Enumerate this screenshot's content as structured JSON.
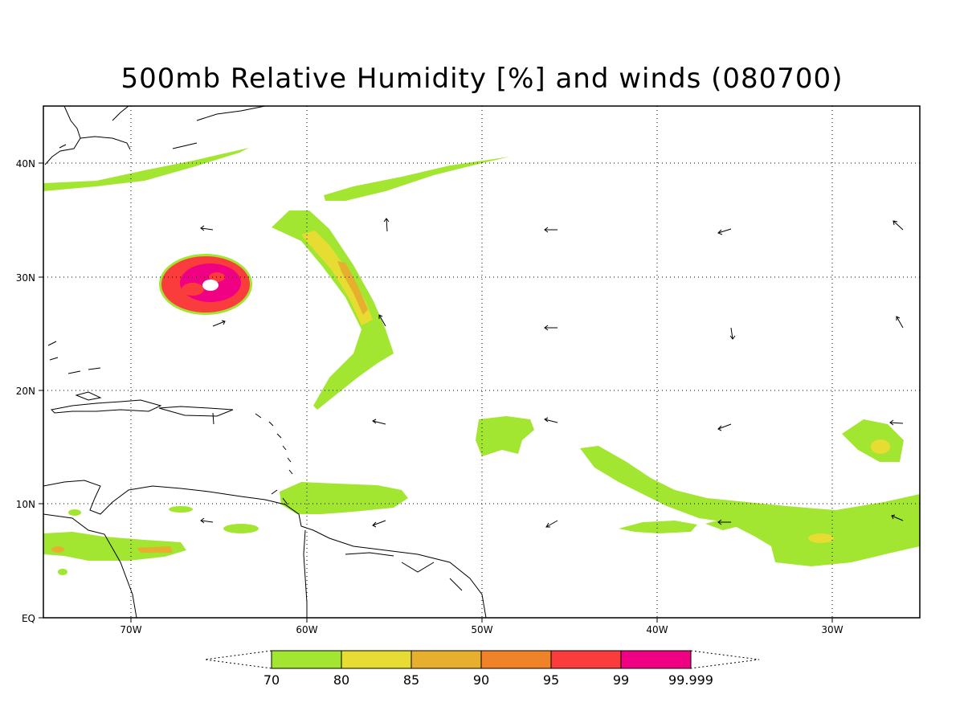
{
  "title": "500mb Relative Humidity [%] and winds (080700)",
  "lon_labels": [
    "70W",
    "60W",
    "50W",
    "40W",
    "30W"
  ],
  "lat_labels": [
    "40N",
    "30N",
    "20N",
    "10N",
    "EQ"
  ],
  "colorbar": {
    "labels": [
      "70",
      "80",
      "85",
      "90",
      "95",
      "99",
      "99.999"
    ],
    "colors": [
      "#a2e632",
      "#e6dc32",
      "#e6af2d",
      "#f08228",
      "#fa3c3c",
      "#f00082"
    ]
  },
  "colors": {
    "coast": "#000000",
    "grid": "#000000"
  }
}
